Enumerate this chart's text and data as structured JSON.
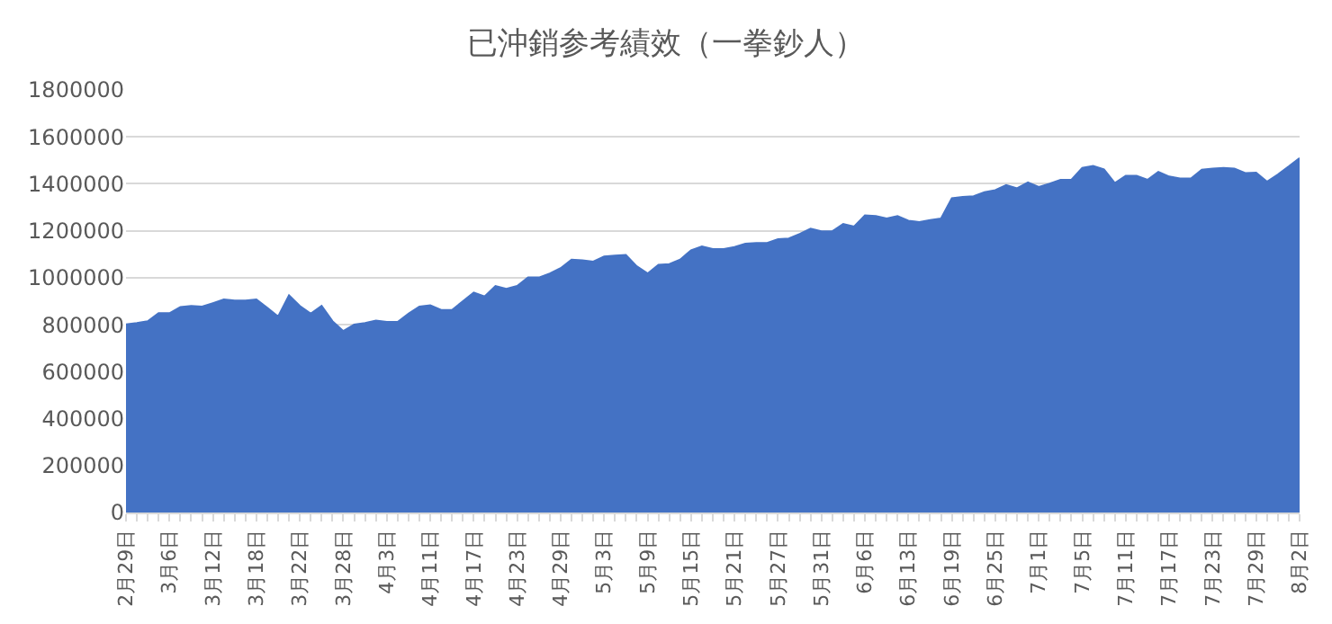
{
  "chart_data": {
    "type": "area",
    "title": "已沖銷参考績效（一拳鈔人）",
    "categories": [
      "2月29日",
      null,
      null,
      null,
      "3月6日",
      null,
      null,
      null,
      "3月12日",
      null,
      null,
      null,
      "3月18日",
      null,
      null,
      null,
      "3月22日",
      null,
      null,
      null,
      "3月28日",
      null,
      null,
      null,
      "4月3日",
      null,
      null,
      null,
      "4月11日",
      null,
      null,
      null,
      "4月17日",
      null,
      null,
      null,
      "4月23日",
      null,
      null,
      null,
      "4月29日",
      null,
      null,
      null,
      "5月3日",
      null,
      null,
      null,
      "5月9日",
      null,
      null,
      null,
      "5月15日",
      null,
      null,
      null,
      "5月21日",
      null,
      null,
      null,
      "5月27日",
      null,
      null,
      null,
      "5月31日",
      null,
      null,
      null,
      "6月6日",
      null,
      null,
      null,
      "6月13日",
      null,
      null,
      null,
      "6月19日",
      null,
      null,
      null,
      "6月25日",
      null,
      null,
      null,
      "7月1日",
      null,
      null,
      null,
      "7月5日",
      null,
      null,
      null,
      "7月11日",
      null,
      null,
      null,
      "7月17日",
      null,
      null,
      null,
      "7月23日",
      null,
      null,
      null,
      "7月29日",
      null,
      null,
      null,
      "8月2日"
    ],
    "values": [
      801000,
      807000,
      815000,
      849000,
      849000,
      875000,
      880000,
      877000,
      892000,
      908000,
      903000,
      903000,
      908000,
      872000,
      835000,
      925000,
      880000,
      847000,
      880000,
      815000,
      773000,
      801000,
      807000,
      818000,
      812000,
      812000,
      847000,
      877000,
      883000,
      863000,
      863000,
      900000,
      937000,
      920000,
      965000,
      953000,
      965000,
      1001000,
      1001000,
      1018000,
      1041000,
      1077000,
      1074000,
      1069000,
      1091000,
      1094000,
      1097000,
      1049000,
      1018000,
      1055000,
      1058000,
      1077000,
      1117000,
      1133000,
      1122000,
      1122000,
      1131000,
      1145000,
      1148000,
      1148000,
      1164000,
      1167000,
      1187000,
      1209000,
      1198000,
      1198000,
      1229000,
      1218000,
      1266000,
      1263000,
      1252000,
      1263000,
      1243000,
      1237000,
      1246000,
      1252000,
      1339000,
      1344000,
      1347000,
      1364000,
      1373000,
      1395000,
      1381000,
      1406000,
      1387000,
      1401000,
      1417000,
      1417000,
      1468000,
      1476000,
      1462000,
      1403000,
      1434000,
      1434000,
      1417000,
      1451000,
      1431000,
      1423000,
      1423000,
      1460000,
      1465000,
      1468000,
      1465000,
      1446000,
      1448000,
      1409000,
      1440000,
      1474000,
      1510000
    ],
    "color": "#4472c4",
    "ylim": [
      0,
      1800000
    ],
    "yticks": [
      0,
      200000,
      400000,
      600000,
      800000,
      1000000,
      1200000,
      1400000,
      1600000,
      1800000
    ],
    "grid": "y"
  }
}
